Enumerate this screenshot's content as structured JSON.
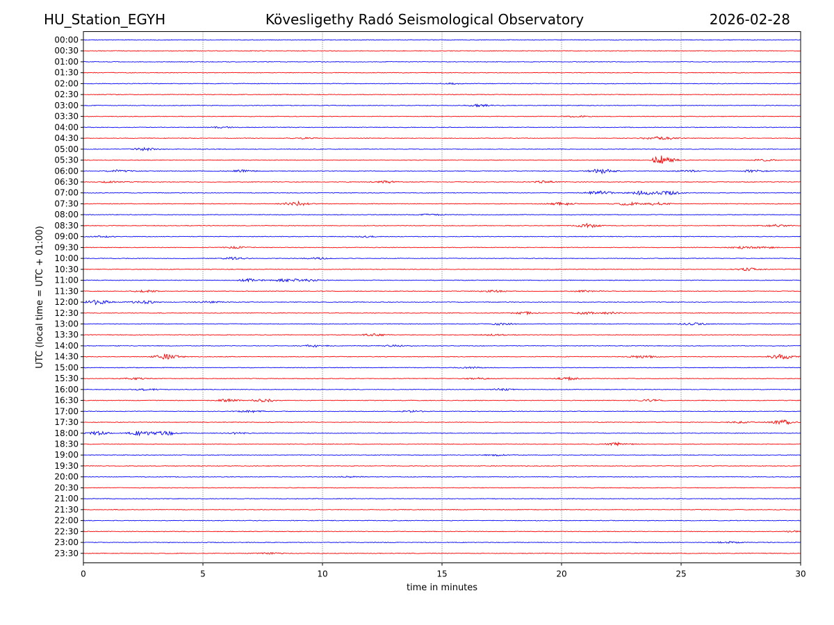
{
  "header": {
    "station": "HU_Station_EGYH",
    "observatory": "Kövesligethy Radó Seismological Observatory",
    "date": "2026-02-28"
  },
  "chart_data": {
    "type": "line",
    "title": "Kövesligethy Radó Seismological Observatory",
    "xlabel": "time in minutes",
    "ylabel": "UTC (local time = UTC + 01:00)",
    "xlim": [
      0,
      30
    ],
    "x_ticks": [
      "0",
      "5",
      "10",
      "15",
      "20",
      "25",
      "30"
    ],
    "grid": "vertical dotted at every 5 minutes",
    "line_colors": [
      "#0000ff",
      "#ff0000"
    ],
    "rows": [
      {
        "label": "00:00",
        "events": []
      },
      {
        "label": "00:30",
        "events": []
      },
      {
        "label": "01:00",
        "events": []
      },
      {
        "label": "01:30",
        "events": []
      },
      {
        "label": "02:00",
        "events": [
          [
            15.4,
            0.4
          ]
        ]
      },
      {
        "label": "02:30",
        "events": []
      },
      {
        "label": "03:00",
        "events": [
          [
            16.6,
            0.8
          ]
        ]
      },
      {
        "label": "03:30",
        "events": [
          [
            20.6,
            0.5
          ]
        ]
      },
      {
        "label": "04:00",
        "events": [
          [
            5.7,
            0.4
          ]
        ]
      },
      {
        "label": "04:30",
        "events": [
          [
            9.2,
            0.5
          ],
          [
            23.9,
            1.0
          ],
          [
            24.5,
            0.6
          ]
        ]
      },
      {
        "label": "05:00",
        "events": [
          [
            2.6,
            1.0
          ]
        ]
      },
      {
        "label": "05:30",
        "events": [
          [
            24.1,
            3.5
          ],
          [
            24.5,
            1.2
          ],
          [
            28.5,
            0.6
          ]
        ]
      },
      {
        "label": "06:00",
        "events": [
          [
            1.5,
            0.7
          ],
          [
            6.6,
            0.7
          ],
          [
            21.7,
            1.8
          ],
          [
            25.3,
            0.6
          ],
          [
            28.0,
            0.7
          ]
        ]
      },
      {
        "label": "06:30",
        "events": [
          [
            1.2,
            0.5
          ],
          [
            12.6,
            0.8
          ],
          [
            19.3,
            0.7
          ]
        ]
      },
      {
        "label": "07:00",
        "events": [
          [
            21.6,
            1.4
          ],
          [
            23.4,
            1.6
          ],
          [
            24.5,
            1.3
          ]
        ]
      },
      {
        "label": "07:30",
        "events": [
          [
            8.9,
            1.6
          ],
          [
            20.0,
            1.0
          ],
          [
            22.8,
            1.0
          ],
          [
            24.0,
            1.0
          ]
        ]
      },
      {
        "label": "08:00",
        "events": [
          [
            14.6,
            0.5
          ]
        ]
      },
      {
        "label": "08:30",
        "events": [
          [
            21.1,
            1.4
          ],
          [
            29.0,
            0.8
          ]
        ]
      },
      {
        "label": "09:00",
        "events": [
          [
            0.8,
            0.5
          ],
          [
            11.8,
            0.5
          ]
        ]
      },
      {
        "label": "09:30",
        "events": [
          [
            6.4,
            0.6
          ],
          [
            27.6,
            0.7
          ],
          [
            28.5,
            0.6
          ]
        ]
      },
      {
        "label": "10:00",
        "events": [
          [
            6.3,
            0.8
          ],
          [
            9.8,
            0.6
          ]
        ]
      },
      {
        "label": "10:30",
        "events": [
          [
            27.9,
            1.0
          ]
        ]
      },
      {
        "label": "11:00",
        "events": [
          [
            7.0,
            1.0
          ],
          [
            8.5,
            1.1
          ],
          [
            9.4,
            0.8
          ]
        ]
      },
      {
        "label": "11:30",
        "events": [
          [
            2.6,
            0.6
          ],
          [
            17.2,
            0.7
          ],
          [
            21.0,
            0.6
          ]
        ]
      },
      {
        "label": "12:00",
        "events": [
          [
            0.6,
            1.8
          ],
          [
            2.5,
            1.1
          ],
          [
            5.3,
            0.6
          ]
        ]
      },
      {
        "label": "12:30",
        "events": [
          [
            18.5,
            0.8
          ],
          [
            21.0,
            0.8
          ],
          [
            22.1,
            0.7
          ]
        ]
      },
      {
        "label": "13:00",
        "events": [
          [
            17.5,
            0.7
          ],
          [
            25.5,
            0.8
          ]
        ]
      },
      {
        "label": "13:30",
        "events": [
          [
            12.2,
            0.8
          ],
          [
            17.2,
            0.5
          ]
        ]
      },
      {
        "label": "14:00",
        "events": [
          [
            9.6,
            0.8
          ],
          [
            13.0,
            0.6
          ]
        ]
      },
      {
        "label": "14:30",
        "events": [
          [
            3.5,
            1.8
          ],
          [
            23.4,
            1.0
          ],
          [
            29.2,
            1.8
          ]
        ]
      },
      {
        "label": "15:00",
        "events": [
          [
            16.3,
            0.5
          ]
        ]
      },
      {
        "label": "15:30",
        "events": [
          [
            2.1,
            0.6
          ],
          [
            16.5,
            0.6
          ],
          [
            20.3,
            0.9
          ]
        ]
      },
      {
        "label": "16:00",
        "events": [
          [
            2.6,
            0.7
          ],
          [
            17.5,
            0.6
          ]
        ]
      },
      {
        "label": "16:30",
        "events": [
          [
            6.0,
            0.8
          ],
          [
            7.6,
            1.1
          ],
          [
            23.7,
            0.7
          ]
        ]
      },
      {
        "label": "17:00",
        "events": [
          [
            7.0,
            0.7
          ],
          [
            13.8,
            0.5
          ]
        ]
      },
      {
        "label": "17:30",
        "events": [
          [
            27.5,
            0.6
          ],
          [
            29.3,
            1.5
          ]
        ]
      },
      {
        "label": "18:00",
        "events": [
          [
            0.6,
            1.2
          ],
          [
            2.4,
            1.6
          ],
          [
            3.4,
            1.5
          ],
          [
            6.4,
            0.6
          ]
        ]
      },
      {
        "label": "18:30",
        "events": [
          [
            22.4,
            1.1
          ]
        ]
      },
      {
        "label": "19:00",
        "events": [
          [
            17.3,
            0.5
          ]
        ]
      },
      {
        "label": "19:30",
        "events": []
      },
      {
        "label": "20:00",
        "events": [
          [
            11.2,
            0.4
          ]
        ]
      },
      {
        "label": "20:30",
        "events": []
      },
      {
        "label": "21:00",
        "events": []
      },
      {
        "label": "21:30",
        "events": []
      },
      {
        "label": "22:00",
        "events": []
      },
      {
        "label": "22:30",
        "events": [
          [
            29.9,
            0.6
          ]
        ]
      },
      {
        "label": "23:00",
        "events": [
          [
            27.0,
            0.6
          ]
        ]
      },
      {
        "label": "23:30",
        "events": [
          [
            7.8,
            0.5
          ]
        ]
      }
    ]
  }
}
